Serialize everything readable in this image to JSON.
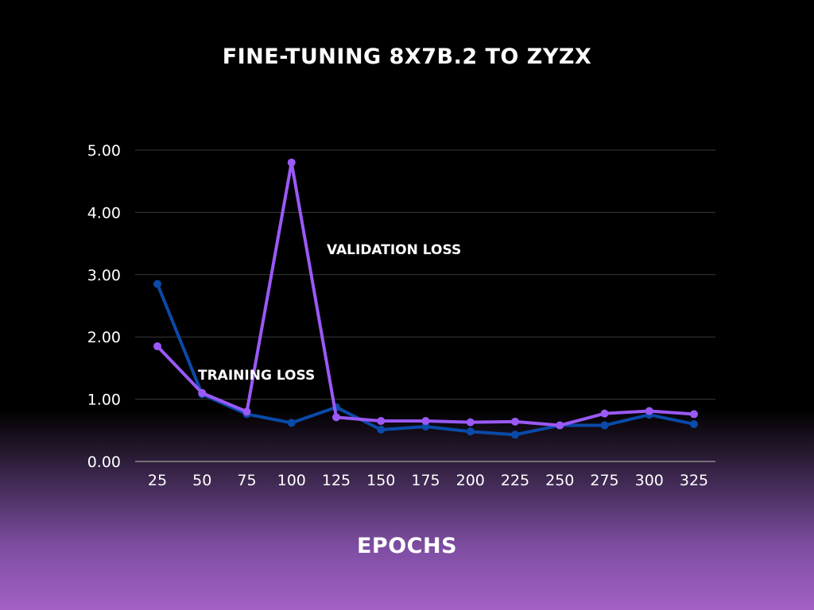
{
  "chart_data": {
    "type": "line",
    "title": "FINE-TUNING 8X7B.2 TO ZYZX",
    "xlabel": "EPOCHS",
    "ylabel": "",
    "x": [
      25,
      50,
      75,
      100,
      125,
      150,
      175,
      200,
      225,
      250,
      275,
      300,
      325
    ],
    "x_tick_labels": [
      "25",
      "50",
      "75",
      "100",
      "125",
      "150",
      "175",
      "200",
      "225",
      "250",
      "275",
      "300",
      "325"
    ],
    "ylim": [
      0,
      5
    ],
    "y_ticks": [
      0,
      1,
      2,
      3,
      4,
      5
    ],
    "y_tick_labels": [
      "0.00",
      "1.00",
      "2.00",
      "3.00",
      "4.00",
      "5.00"
    ],
    "grid": true,
    "legend": "none",
    "series": [
      {
        "name": "TRAINING LOSS",
        "color": "#0a4aa8",
        "values": [
          2.85,
          1.08,
          0.76,
          0.62,
          0.87,
          0.51,
          0.56,
          0.48,
          0.43,
          0.58,
          0.58,
          0.75,
          0.6
        ]
      },
      {
        "name": "VALIDATION LOSS",
        "color": "#9b59f6",
        "values": [
          1.85,
          1.1,
          0.8,
          4.8,
          0.71,
          0.65,
          0.65,
          0.63,
          0.64,
          0.58,
          0.77,
          0.81,
          0.76
        ]
      }
    ],
    "annotations": [
      {
        "text": "TRAINING LOSS",
        "series": 0
      },
      {
        "text": "VALIDATION LOSS",
        "series": 1
      }
    ]
  }
}
